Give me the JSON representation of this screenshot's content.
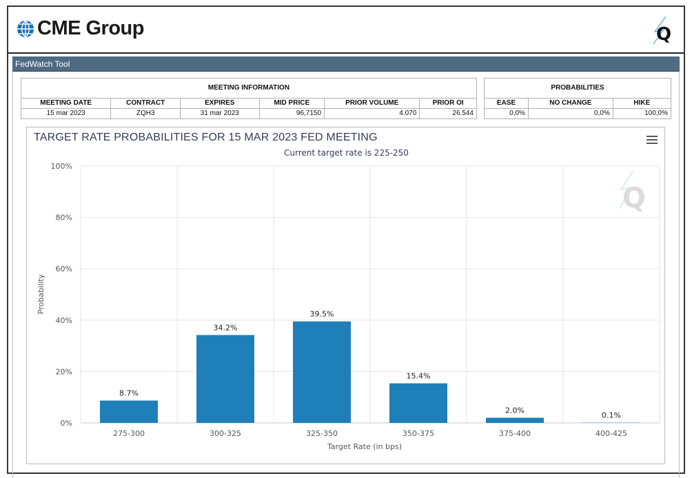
{
  "header": {
    "brand": "CME Group",
    "logo_icon": "globe-icon",
    "q_icon": "quikstrike-q-icon"
  },
  "tool_title": "FedWatch Tool",
  "meeting_info": {
    "group_label": "MEETING INFORMATION",
    "columns": [
      "MEETING DATE",
      "CONTRACT",
      "EXPIRES",
      "MID PRICE",
      "PRIOR VOLUME",
      "PRIOR OI"
    ],
    "values": [
      "15 mar 2023",
      "ZQH3",
      "31 mar 2023",
      "96,7150",
      "4.070",
      "26.544"
    ]
  },
  "probabilities": {
    "group_label": "PROBABILITIES",
    "columns": [
      "EASE",
      "NO CHANGE",
      "HIKE"
    ],
    "values": [
      "0,0%",
      "0,0%",
      "100,0%"
    ]
  },
  "chart_data": {
    "type": "bar",
    "title": "TARGET RATE PROBABILITIES FOR 15 MAR 2023 FED MEETING",
    "subtitle": "Current target rate is 225-250",
    "xlabel": "Target Rate (in bps)",
    "ylabel": "Probability",
    "categories": [
      "275-300",
      "300-325",
      "325-350",
      "350-375",
      "375-400",
      "400-425"
    ],
    "values": [
      8.7,
      34.2,
      39.5,
      15.4,
      2.0,
      0.1
    ],
    "data_labels": [
      "8.7%",
      "34.2%",
      "39.5%",
      "15.4%",
      "2.0%",
      "0.1%"
    ],
    "ylim": [
      0,
      100
    ],
    "yticks": [
      0,
      20,
      40,
      60,
      80,
      100
    ],
    "ytick_labels": [
      "0%",
      "20%",
      "40%",
      "60%",
      "80%",
      "100%"
    ],
    "bar_color": "#1f7fb8",
    "grid": "vertical and horizontal"
  },
  "colors": {
    "tool_bar": "#4f6b84",
    "title_text": "#333b5b",
    "bar": "#1f7fb8"
  }
}
